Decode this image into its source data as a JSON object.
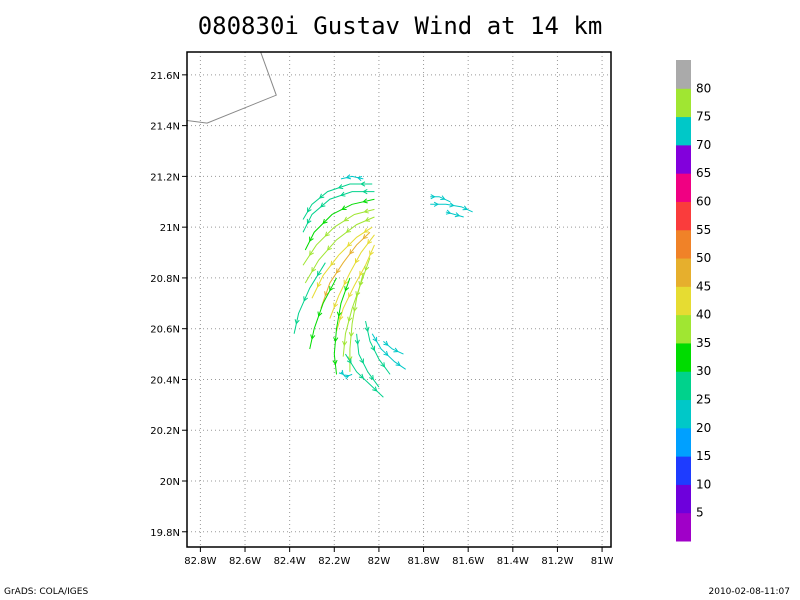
{
  "title": "080830i Gustav Wind at 14 km",
  "credit_left": "GrADS: COLA/IGES",
  "credit_right": "2010-02-08-11:07",
  "chart_data": {
    "type": "vector_streamline",
    "title": "080830i Gustav Wind at 14 km",
    "x_ticks": [
      "82.8W",
      "82.6W",
      "82.4W",
      "82.2W",
      "82W",
      "81.8W",
      "81.6W",
      "81.4W",
      "81.2W",
      "81W"
    ],
    "x_tick_values": [
      -82.8,
      -82.6,
      -82.4,
      -82.2,
      -82.0,
      -81.8,
      -81.6,
      -81.4,
      -81.2,
      -81.0
    ],
    "y_ticks": [
      "19.8N",
      "20N",
      "20.2N",
      "20.4N",
      "20.6N",
      "20.8N",
      "21N",
      "21.2N",
      "21.4N",
      "21.6N"
    ],
    "y_tick_values": [
      19.8,
      20.0,
      20.2,
      20.4,
      20.6,
      20.8,
      21.0,
      21.2,
      21.4,
      21.6
    ],
    "xlim": [
      -82.86,
      -80.96
    ],
    "ylim": [
      19.74,
      21.69
    ],
    "grid": true,
    "coastline": [
      [
        -82.53,
        21.69
      ],
      [
        -82.46,
        21.52
      ],
      [
        -82.77,
        21.41
      ],
      [
        -82.86,
        21.42
      ]
    ],
    "colorbar": {
      "labels": [
        "5",
        "10",
        "15",
        "20",
        "25",
        "30",
        "35",
        "40",
        "45",
        "50",
        "55",
        "60",
        "65",
        "70",
        "75",
        "80"
      ],
      "colors": [
        "#a000c8",
        "#6e00dc",
        "#1e3cff",
        "#00a0ff",
        "#00c8c8",
        "#00d28c",
        "#00dc00",
        "#a0e632",
        "#e6dc32",
        "#e6af2d",
        "#f08228",
        "#fa3c3c",
        "#f00082",
        "#8200dc",
        "#00c8c8",
        "#a0e632",
        "#aaaaaa"
      ]
    },
    "streamlines": [
      {
        "speed": 22,
        "points": [
          [
            -82.07,
            21.19
          ],
          [
            -82.12,
            21.2
          ],
          [
            -82.17,
            21.19
          ]
        ]
      },
      {
        "speed": 28,
        "points": [
          [
            -82.03,
            21.17
          ],
          [
            -82.13,
            21.17
          ],
          [
            -82.23,
            21.14
          ],
          [
            -82.3,
            21.09
          ],
          [
            -82.34,
            21.03
          ]
        ]
      },
      {
        "speed": 30,
        "points": [
          [
            -82.02,
            21.14
          ],
          [
            -82.12,
            21.14
          ],
          [
            -82.22,
            21.11
          ],
          [
            -82.3,
            21.05
          ],
          [
            -82.34,
            20.98
          ]
        ]
      },
      {
        "speed": 34,
        "points": [
          [
            -82.02,
            21.11
          ],
          [
            -82.12,
            21.09
          ],
          [
            -82.21,
            21.05
          ],
          [
            -82.29,
            20.98
          ],
          [
            -82.33,
            20.91
          ]
        ]
      },
      {
        "speed": 37,
        "points": [
          [
            -82.02,
            21.07
          ],
          [
            -82.11,
            21.05
          ],
          [
            -82.2,
            21.0
          ],
          [
            -82.28,
            20.93
          ],
          [
            -82.34,
            20.85
          ]
        ]
      },
      {
        "speed": 40,
        "points": [
          [
            -82.02,
            21.04
          ],
          [
            -82.1,
            21.01
          ],
          [
            -82.19,
            20.95
          ],
          [
            -82.27,
            20.87
          ],
          [
            -82.33,
            20.78
          ]
        ]
      },
      {
        "speed": 43,
        "points": [
          [
            -82.03,
            21.0
          ],
          [
            -82.1,
            20.96
          ],
          [
            -82.18,
            20.89
          ],
          [
            -82.25,
            20.81
          ],
          [
            -82.3,
            20.72
          ]
        ]
      },
      {
        "speed": 46,
        "points": [
          [
            -82.04,
            20.98
          ],
          [
            -82.1,
            20.93
          ],
          [
            -82.16,
            20.86
          ],
          [
            -82.22,
            20.78
          ],
          [
            -82.26,
            20.68
          ]
        ]
      },
      {
        "speed": 44,
        "points": [
          [
            -82.02,
            20.97
          ],
          [
            -82.08,
            20.9
          ],
          [
            -82.13,
            20.82
          ],
          [
            -82.18,
            20.73
          ],
          [
            -82.22,
            20.64
          ]
        ]
      },
      {
        "speed": 42,
        "points": [
          [
            -82.02,
            20.93
          ],
          [
            -82.06,
            20.85
          ],
          [
            -82.11,
            20.77
          ],
          [
            -82.16,
            20.68
          ],
          [
            -82.19,
            20.59
          ]
        ]
      },
      {
        "speed": 38,
        "points": [
          [
            -82.04,
            20.88
          ],
          [
            -82.08,
            20.78
          ],
          [
            -82.12,
            20.68
          ],
          [
            -82.15,
            20.58
          ],
          [
            -82.16,
            20.49
          ]
        ]
      },
      {
        "speed": 36,
        "points": [
          [
            -82.07,
            20.82
          ],
          [
            -82.1,
            20.72
          ],
          [
            -82.12,
            20.62
          ],
          [
            -82.13,
            20.52
          ],
          [
            -82.13,
            20.43
          ]
        ]
      },
      {
        "speed": 33,
        "points": [
          [
            -82.13,
            20.8
          ],
          [
            -82.17,
            20.7
          ],
          [
            -82.19,
            20.6
          ],
          [
            -82.2,
            20.5
          ],
          [
            -82.19,
            20.42
          ]
        ]
      },
      {
        "speed": 31,
        "points": [
          [
            -82.19,
            20.8
          ],
          [
            -82.25,
            20.7
          ],
          [
            -82.29,
            20.6
          ],
          [
            -82.31,
            20.52
          ]
        ]
      },
      {
        "speed": 28,
        "points": [
          [
            -82.24,
            20.86
          ],
          [
            -82.31,
            20.76
          ],
          [
            -82.36,
            20.66
          ],
          [
            -82.38,
            20.58
          ]
        ]
      },
      {
        "speed": 29,
        "points": [
          [
            -82.1,
            20.58
          ],
          [
            -82.09,
            20.5
          ],
          [
            -82.05,
            20.43
          ],
          [
            -82.0,
            20.37
          ]
        ]
      },
      {
        "speed": 27,
        "points": [
          [
            -82.06,
            20.63
          ],
          [
            -82.04,
            20.55
          ],
          [
            -82.0,
            20.48
          ],
          [
            -81.95,
            20.42
          ]
        ]
      },
      {
        "speed": 25,
        "points": [
          [
            -82.03,
            20.58
          ],
          [
            -81.99,
            20.52
          ],
          [
            -81.93,
            20.47
          ],
          [
            -81.88,
            20.44
          ]
        ]
      },
      {
        "speed": 24,
        "points": [
          [
            -81.98,
            20.55
          ],
          [
            -81.94,
            20.52
          ],
          [
            -81.89,
            20.5
          ]
        ]
      },
      {
        "speed": 26,
        "points": [
          [
            -82.15,
            20.5
          ],
          [
            -82.1,
            20.43
          ],
          [
            -82.04,
            20.38
          ],
          [
            -81.98,
            20.33
          ]
        ]
      },
      {
        "speed": 23,
        "points": [
          [
            -82.17,
            20.43
          ],
          [
            -82.15,
            20.41
          ],
          [
            -82.12,
            20.42
          ]
        ]
      },
      {
        "speed": 22,
        "points": [
          [
            -81.77,
            21.12
          ],
          [
            -81.73,
            21.12
          ],
          [
            -81.68,
            21.1
          ]
        ]
      },
      {
        "speed": 24,
        "points": [
          [
            -81.77,
            21.09
          ],
          [
            -81.7,
            21.09
          ],
          [
            -81.63,
            21.08
          ],
          [
            -81.58,
            21.06
          ]
        ]
      },
      {
        "speed": 23,
        "points": [
          [
            -81.7,
            21.06
          ],
          [
            -81.66,
            21.05
          ],
          [
            -81.62,
            21.04
          ]
        ]
      }
    ]
  }
}
